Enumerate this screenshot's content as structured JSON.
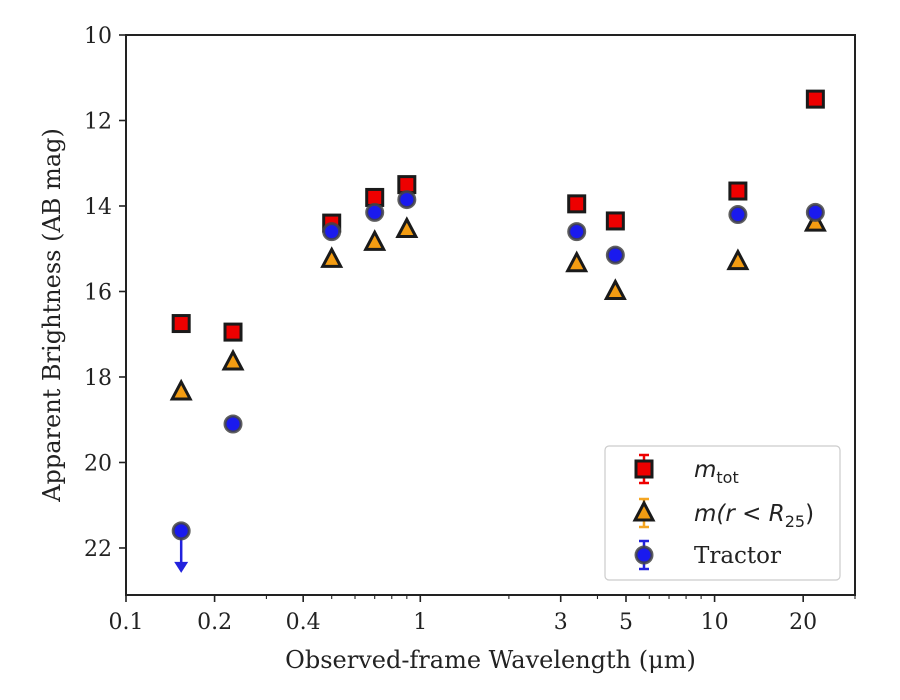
{
  "chart_data": {
    "type": "scatter",
    "title": "",
    "xlabel": "Observed-frame Wavelength (μm)",
    "ylabel": "Apparent Brightness (AB mag)",
    "xscale": "log",
    "xlim": [
      0.1,
      30
    ],
    "ylim": [
      23.1,
      10
    ],
    "y_inverted": true,
    "grid": false,
    "legend_position": "lower right",
    "x_tick_labels": [
      "0.1",
      "0.2",
      "0.4",
      "1",
      "3",
      "5",
      "10",
      "20"
    ],
    "x_tick_values": [
      0.1,
      0.2,
      0.4,
      1,
      3,
      5,
      10,
      20
    ],
    "y_tick_values": [
      10,
      12,
      14,
      16,
      18,
      20,
      22
    ],
    "series": [
      {
        "name": "m_tot",
        "legend_parts": [
          "m",
          "tot"
        ],
        "marker": "square",
        "color": "#ee0000",
        "errorbar_color": "#ee0000",
        "points": [
          {
            "x": 0.154,
            "y": 16.75
          },
          {
            "x": 0.231,
            "y": 16.95
          },
          {
            "x": 0.5,
            "y": 14.4
          },
          {
            "x": 0.7,
            "y": 13.8
          },
          {
            "x": 0.9,
            "y": 13.5
          },
          {
            "x": 3.4,
            "y": 13.95
          },
          {
            "x": 4.6,
            "y": 14.35
          },
          {
            "x": 12.0,
            "y": 13.65
          },
          {
            "x": 22.0,
            "y": 11.5
          }
        ]
      },
      {
        "name": "m(r < R_25)",
        "legend_parts": [
          "m(r < R",
          "25",
          ")"
        ],
        "marker": "triangle",
        "color": "#f39c12",
        "errorbar_color": "#f5a623",
        "points": [
          {
            "x": 0.154,
            "y": 18.35
          },
          {
            "x": 0.231,
            "y": 17.65
          },
          {
            "x": 0.5,
            "y": 15.25
          },
          {
            "x": 0.7,
            "y": 14.85
          },
          {
            "x": 0.9,
            "y": 14.55
          },
          {
            "x": 3.4,
            "y": 15.35
          },
          {
            "x": 4.6,
            "y": 16.0
          },
          {
            "x": 12.0,
            "y": 15.3
          },
          {
            "x": 22.0,
            "y": 14.4
          }
        ]
      },
      {
        "name": "Tractor",
        "marker": "circle",
        "color": "#1a1aee",
        "errorbar_color": "#2222dd",
        "points": [
          {
            "x": 0.154,
            "y": 21.6,
            "upper_limit": true
          },
          {
            "x": 0.231,
            "y": 19.1
          },
          {
            "x": 0.5,
            "y": 14.6
          },
          {
            "x": 0.7,
            "y": 14.15
          },
          {
            "x": 0.9,
            "y": 13.85
          },
          {
            "x": 3.4,
            "y": 14.6
          },
          {
            "x": 4.6,
            "y": 15.15
          },
          {
            "x": 12.0,
            "y": 14.2
          },
          {
            "x": 22.0,
            "y": 14.15
          }
        ]
      }
    ]
  }
}
